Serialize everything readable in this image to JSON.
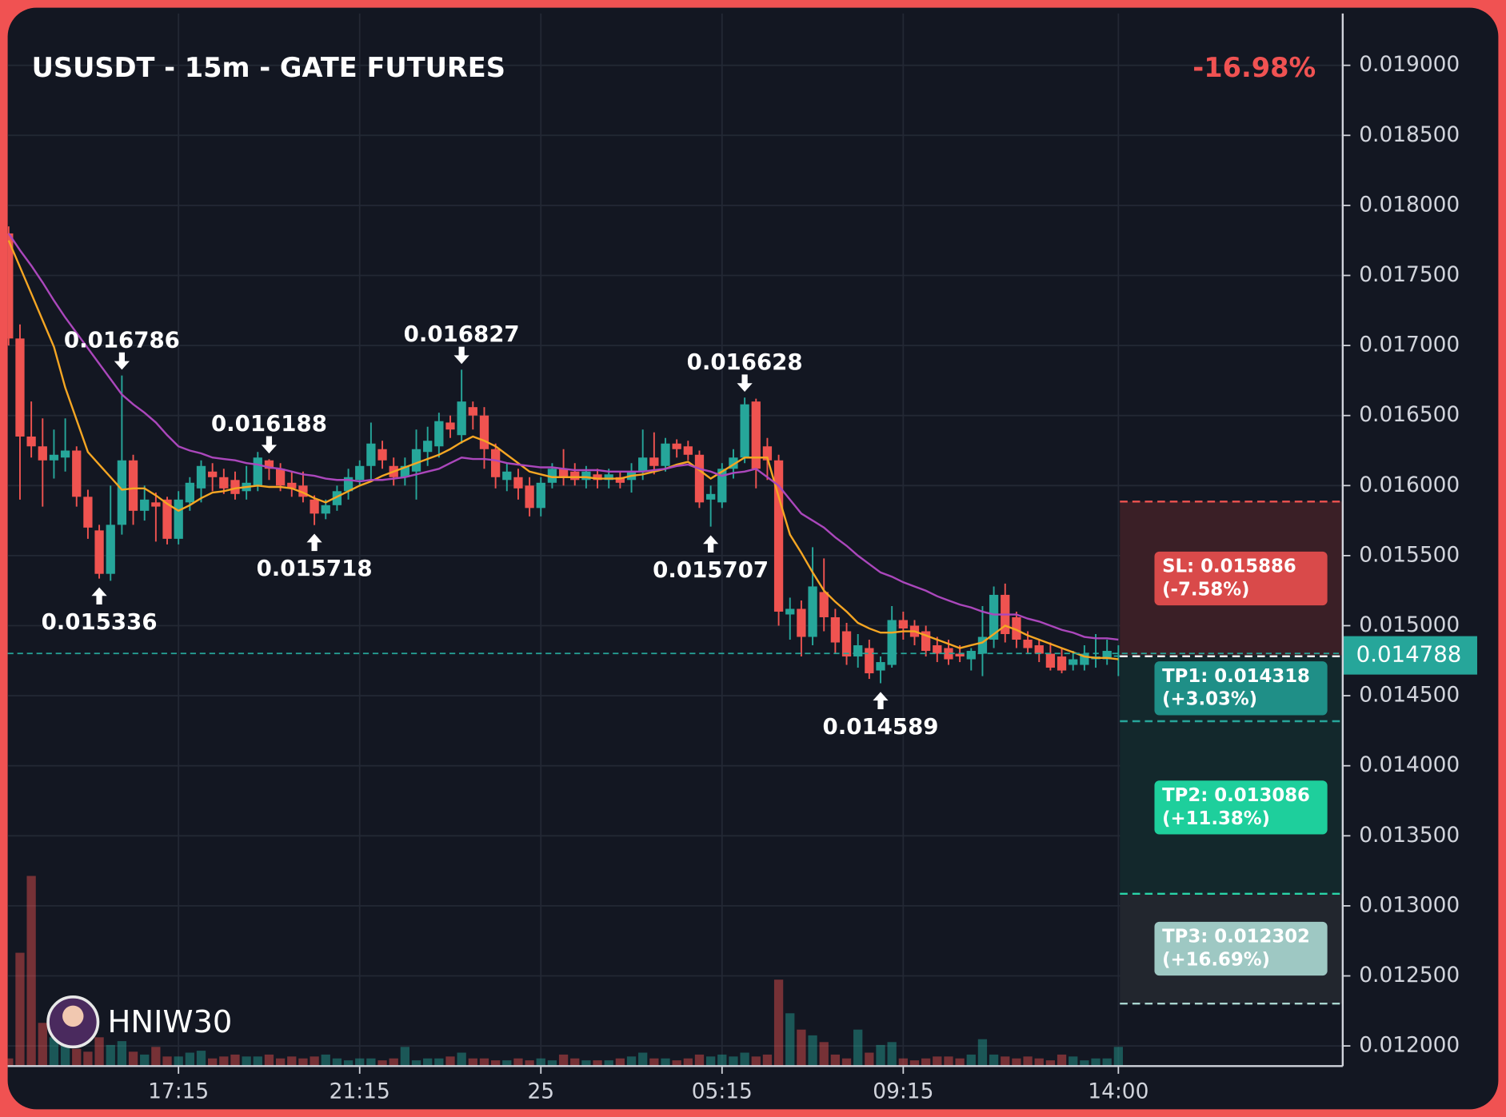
{
  "chart_data": {
    "type": "candlestick",
    "title": "USUSDT - 15m - GATE FUTURES",
    "change": "-16.98%",
    "watermark": "HNIW30",
    "grid": true,
    "colors": {
      "up": "#26a69a",
      "down": "#ef5350"
    },
    "ylim": [
      0.012,
      0.019
    ],
    "yticks": [
      {
        "value": 0.012,
        "label": "0.012000"
      },
      {
        "value": 0.0125,
        "label": "0.012500"
      },
      {
        "value": 0.013,
        "label": "0.013000"
      },
      {
        "value": 0.0135,
        "label": "0.013500"
      },
      {
        "value": 0.014,
        "label": "0.014000"
      },
      {
        "value": 0.0145,
        "label": "0.014500"
      },
      {
        "value": 0.015,
        "label": "0.015000"
      },
      {
        "value": 0.0155,
        "label": "0.015500"
      },
      {
        "value": 0.016,
        "label": "0.016000"
      },
      {
        "value": 0.0165,
        "label": "0.016500"
      },
      {
        "value": 0.017,
        "label": "0.017000"
      },
      {
        "value": 0.0175,
        "label": "0.017500"
      },
      {
        "value": 0.018,
        "label": "0.018000"
      },
      {
        "value": 0.0185,
        "label": "0.018500"
      },
      {
        "value": 0.019,
        "label": "0.019000"
      }
    ],
    "categories": [
      null,
      null,
      null,
      null,
      null,
      null,
      null,
      null,
      null,
      null,
      null,
      null,
      null,
      null,
      null,
      "17:15",
      null,
      null,
      null,
      null,
      null,
      null,
      null,
      null,
      null,
      null,
      null,
      null,
      null,
      null,
      null,
      "21:15",
      null,
      null,
      null,
      null,
      null,
      null,
      null,
      null,
      null,
      null,
      null,
      null,
      null,
      null,
      null,
      "25",
      null,
      null,
      null,
      null,
      null,
      null,
      null,
      null,
      null,
      null,
      null,
      null,
      null,
      null,
      null,
      "05:15",
      null,
      null,
      null,
      null,
      null,
      null,
      null,
      null,
      null,
      null,
      null,
      null,
      null,
      null,
      null,
      "09:15",
      null,
      null,
      null,
      null,
      null,
      null,
      null,
      null,
      null,
      null,
      null,
      null,
      null,
      null,
      null,
      null,
      null,
      null,
      "14:00"
    ],
    "open": [
      0.0178,
      0.01705,
      0.01635,
      0.01628,
      0.01618,
      0.0162,
      0.01625,
      0.01592,
      0.01568,
      0.01537,
      0.01572,
      0.01618,
      0.01582,
      0.01588,
      0.0159,
      0.01562,
      0.01588,
      0.01598,
      0.0161,
      0.01606,
      0.01604,
      0.01596,
      0.016,
      0.01618,
      0.01612,
      0.01602,
      0.016,
      0.0159,
      0.0158,
      0.01586,
      0.01596,
      0.01604,
      0.01614,
      0.01626,
      0.01614,
      0.01606,
      0.0161,
      0.01624,
      0.01628,
      0.01645,
      0.01636,
      0.01656,
      0.0165,
      0.01626,
      0.01604,
      0.01606,
      0.016,
      0.01584,
      0.01602,
      0.01612,
      0.0161,
      0.01604,
      0.01608,
      0.01604,
      0.01606,
      0.01604,
      0.0161,
      0.0162,
      0.01614,
      0.0163,
      0.01628,
      0.01622,
      0.0159,
      0.01588,
      0.01612,
      0.0162,
      0.0166,
      0.01628,
      0.01618,
      0.01508,
      0.01512,
      0.01492,
      0.01524,
      0.01506,
      0.01496,
      0.01478,
      0.01484,
      0.01468,
      0.01472,
      0.01504,
      0.015,
      0.01496,
      0.01486,
      0.01484,
      0.0148,
      0.01476,
      0.0148,
      0.0149,
      0.01522,
      0.01506,
      0.0149,
      0.01486,
      0.0148,
      0.01478,
      0.01472,
      0.01472,
      0.01476,
      0.01476,
      0.01478
    ],
    "high": [
      0.01785,
      0.01715,
      0.0166,
      0.01648,
      0.0164,
      0.01648,
      0.01628,
      0.01597,
      0.01572,
      0.016,
      0.016786,
      0.01622,
      0.016,
      0.01595,
      0.01592,
      0.01596,
      0.01606,
      0.01618,
      0.01616,
      0.01612,
      0.0161,
      0.01614,
      0.01624,
      0.016188,
      0.01616,
      0.0161,
      0.0161,
      0.01593,
      0.0159,
      0.016,
      0.01612,
      0.01618,
      0.01645,
      0.01632,
      0.0162,
      0.0162,
      0.0164,
      0.01642,
      0.01652,
      0.0165,
      0.016827,
      0.0166,
      0.01656,
      0.0163,
      0.01616,
      0.01612,
      0.01606,
      0.01606,
      0.01616,
      0.01626,
      0.01616,
      0.01614,
      0.01612,
      0.01612,
      0.0161,
      0.01616,
      0.0164,
      0.01638,
      0.01634,
      0.01633,
      0.01632,
      0.01625,
      0.016,
      0.01616,
      0.01626,
      0.016628,
      0.01662,
      0.01634,
      0.01622,
      0.0152,
      0.01518,
      0.01556,
      0.01548,
      0.01512,
      0.01502,
      0.01494,
      0.0149,
      0.01478,
      0.01514,
      0.0151,
      0.01504,
      0.015,
      0.01492,
      0.0149,
      0.01486,
      0.01484,
      0.01514,
      0.01528,
      0.0153,
      0.0151,
      0.01496,
      0.0149,
      0.01488,
      0.01484,
      0.01482,
      0.01486,
      0.01494,
      0.0149,
      0.01486
    ],
    "low": [
      0.017,
      0.0159,
      0.0162,
      0.01585,
      0.01605,
      0.0161,
      0.01585,
      0.01562,
      0.015336,
      0.01532,
      0.01565,
      0.01572,
      0.01575,
      0.0156,
      0.01558,
      0.01558,
      0.01582,
      0.01588,
      0.01596,
      0.01594,
      0.0159,
      0.0159,
      0.01596,
      0.01604,
      0.01596,
      0.01592,
      0.01588,
      0.015718,
      0.01576,
      0.01582,
      0.0159,
      0.016,
      0.01604,
      0.01612,
      0.016,
      0.016,
      0.0159,
      0.01614,
      0.0162,
      0.01634,
      0.0163,
      0.0164,
      0.01612,
      0.01598,
      0.01596,
      0.0159,
      0.01578,
      0.01578,
      0.01598,
      0.016,
      0.016,
      0.01598,
      0.01598,
      0.01598,
      0.01598,
      0.01595,
      0.01604,
      0.01608,
      0.0161,
      0.0162,
      0.01618,
      0.01584,
      0.015707,
      0.01584,
      0.01605,
      0.01616,
      0.01598,
      0.01604,
      0.015,
      0.0149,
      0.01478,
      0.01486,
      0.01496,
      0.0148,
      0.01472,
      0.0147,
      0.01462,
      0.014589,
      0.0147,
      0.0149,
      0.01486,
      0.01478,
      0.01474,
      0.01472,
      0.01474,
      0.01468,
      0.01464,
      0.01484,
      0.01488,
      0.01484,
      0.0148,
      0.01474,
      0.01468,
      0.01466,
      0.01468,
      0.01468,
      0.0147,
      0.01472,
      0.01464
    ],
    "close": [
      0.01705,
      0.01635,
      0.01628,
      0.01618,
      0.01622,
      0.01625,
      0.01592,
      0.0157,
      0.01537,
      0.01572,
      0.01618,
      0.01582,
      0.0159,
      0.01585,
      0.01562,
      0.0159,
      0.01602,
      0.01614,
      0.01606,
      0.01598,
      0.01594,
      0.01602,
      0.0162,
      0.01612,
      0.016,
      0.01598,
      0.01592,
      0.0158,
      0.01586,
      0.01596,
      0.01606,
      0.01614,
      0.0163,
      0.01618,
      0.01606,
      0.01614,
      0.01626,
      0.01632,
      0.01646,
      0.0164,
      0.0166,
      0.0165,
      0.01626,
      0.01606,
      0.0161,
      0.01598,
      0.01584,
      0.01602,
      0.01612,
      0.01606,
      0.01604,
      0.0161,
      0.01604,
      0.01608,
      0.01602,
      0.0161,
      0.0162,
      0.01614,
      0.0163,
      0.01626,
      0.01622,
      0.01588,
      0.01594,
      0.01612,
      0.0162,
      0.01658,
      0.01612,
      0.01618,
      0.0151,
      0.01512,
      0.01492,
      0.01528,
      0.01506,
      0.01488,
      0.01478,
      0.01486,
      0.01466,
      0.01474,
      0.01504,
      0.01498,
      0.01492,
      0.01482,
      0.0148,
      0.01476,
      0.01478,
      0.01482,
      0.01492,
      0.01522,
      0.01494,
      0.0149,
      0.01484,
      0.0148,
      0.0147,
      0.01468,
      0.01476,
      0.0148,
      0.01478,
      0.01482,
      0.014788
    ],
    "volume": [
      8,
      118,
      198,
      45,
      30,
      25,
      18,
      15,
      30,
      22,
      26,
      15,
      12,
      20,
      10,
      10,
      14,
      16,
      8,
      10,
      12,
      10,
      10,
      12,
      8,
      10,
      8,
      10,
      12,
      8,
      6,
      8,
      8,
      6,
      8,
      20,
      6,
      8,
      8,
      10,
      14,
      8,
      8,
      6,
      6,
      8,
      6,
      8,
      6,
      12,
      8,
      6,
      6,
      6,
      8,
      10,
      14,
      8,
      8,
      6,
      8,
      12,
      10,
      12,
      10,
      14,
      10,
      12,
      90,
      55,
      38,
      32,
      25,
      12,
      8,
      38,
      14,
      22,
      25,
      8,
      6,
      8,
      10,
      10,
      8,
      12,
      28,
      12,
      10,
      8,
      10,
      8,
      6,
      12,
      10,
      6,
      8,
      8,
      20
    ],
    "lines": [
      {
        "color": "#f5a623",
        "values": [
          0.01775,
          0.01756,
          0.01737,
          0.01718,
          0.01699,
          0.0167,
          0.01647,
          0.01624,
          0.01615,
          0.01606,
          0.01597,
          0.01598,
          0.01598,
          0.01593,
          0.01587,
          0.01582,
          0.01586,
          0.01591,
          0.01595,
          0.01596,
          0.01598,
          0.01599,
          0.016,
          0.01599,
          0.01599,
          0.01598,
          0.01595,
          0.01591,
          0.01588,
          0.01592,
          0.01596,
          0.016,
          0.01603,
          0.01607,
          0.0161,
          0.01613,
          0.01616,
          0.01619,
          0.01622,
          0.01626,
          0.01631,
          0.01635,
          0.01632,
          0.01628,
          0.01622,
          0.01616,
          0.0161,
          0.01608,
          0.01606,
          0.01606,
          0.01606,
          0.01606,
          0.01605,
          0.01605,
          0.01605,
          0.01607,
          0.01608,
          0.0161,
          0.01612,
          0.01615,
          0.01617,
          0.01611,
          0.01605,
          0.0161,
          0.01615,
          0.0162,
          0.0162,
          0.0162,
          0.01592,
          0.01565,
          0.01552,
          0.01538,
          0.01525,
          0.01517,
          0.0151,
          0.01502,
          0.01498,
          0.01495,
          0.01495,
          0.01496,
          0.01496,
          0.01493,
          0.0149,
          0.01487,
          0.01484,
          0.01486,
          0.01488,
          0.01494,
          0.015,
          0.01497,
          0.01493,
          0.0149,
          0.01487,
          0.01484,
          0.01481,
          0.01478,
          0.01477,
          0.01477,
          0.01476
        ]
      },
      {
        "color": "#ab47bc",
        "values": [
          0.0178,
          0.01768,
          0.01757,
          0.01745,
          0.01732,
          0.0172,
          0.01709,
          0.01698,
          0.01687,
          0.01676,
          0.01665,
          0.01658,
          0.01652,
          0.01645,
          0.01636,
          0.01628,
          0.01625,
          0.01623,
          0.0162,
          0.01619,
          0.01618,
          0.01616,
          0.01615,
          0.01613,
          0.01612,
          0.0161,
          0.01608,
          0.01607,
          0.01605,
          0.01604,
          0.01604,
          0.01603,
          0.01604,
          0.01604,
          0.01605,
          0.01606,
          0.01608,
          0.0161,
          0.01612,
          0.01616,
          0.0162,
          0.01619,
          0.01619,
          0.01618,
          0.01616,
          0.01615,
          0.01614,
          0.01613,
          0.01613,
          0.01612,
          0.01611,
          0.01611,
          0.01611,
          0.0161,
          0.0161,
          0.0161,
          0.0161,
          0.01611,
          0.01612,
          0.01614,
          0.01615,
          0.01612,
          0.0161,
          0.01607,
          0.01609,
          0.0161,
          0.01612,
          0.01606,
          0.016,
          0.0159,
          0.0158,
          0.01575,
          0.0157,
          0.01563,
          0.01557,
          0.0155,
          0.01544,
          0.01538,
          0.01535,
          0.01531,
          0.01528,
          0.01525,
          0.01521,
          0.01518,
          0.01515,
          0.01513,
          0.0151,
          0.01508,
          0.01508,
          0.01508,
          0.01505,
          0.01503,
          0.015,
          0.01497,
          0.01495,
          0.01492,
          0.01491,
          0.01491,
          0.0149
        ]
      }
    ],
    "pivots": [
      0.016786,
      0.015336,
      0.016188,
      0.015718,
      0.016827,
      0.016628,
      0.015707,
      0.014589
    ],
    "last_price": 0.014788,
    "levels": [
      {
        "label": "SL: 0.015886",
        "change": "(-7.58%)",
        "value": 0.015886,
        "color": "#d94a4a",
        "line_color": "#ef5350",
        "zone_color": "#3a1f26"
      },
      {
        "label": "TP1: 0.014318",
        "change": "(+3.03%)",
        "value": 0.014318,
        "color": "#1f8f87",
        "line_color": "#26a69a",
        "zone_color": "#13282c"
      },
      {
        "label": "TP2: 0.013086",
        "change": "(+11.38%)",
        "value": 0.013086,
        "color": "#1ecf9c",
        "line_color": "#2ad4a8",
        "zone_color": "#13282c"
      },
      {
        "label": "TP3: 0.012302",
        "change": "(+16.69%)",
        "value": 0.012302,
        "color": "#9ec8c3",
        "line_color": "#a9d6d0",
        "zone_color": "#22262e"
      }
    ]
  }
}
